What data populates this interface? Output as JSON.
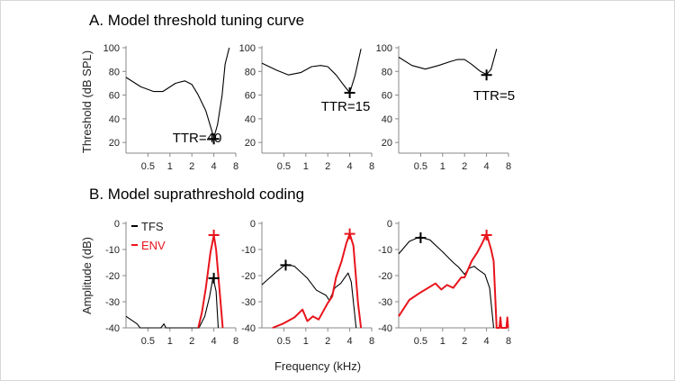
{
  "chart_data": [
    {
      "type": "line",
      "section_title": "A. Model threshold tuning curve",
      "panel": 1,
      "ylabel": "Threshold (dB SPL)",
      "xscale": "log2",
      "xticks": [
        "0.5",
        "1",
        "2",
        "4",
        "8"
      ],
      "yticks": [
        "20",
        "40",
        "60",
        "80",
        "100"
      ],
      "xlim": [
        0.25,
        8
      ],
      "ylim": [
        11,
        100
      ],
      "annotation": "TTR=40",
      "series": [
        {
          "color": "#000000",
          "points": [
            [
              0.25,
              75
            ],
            [
              0.4,
              67
            ],
            [
              0.6,
              63
            ],
            [
              0.8,
              63
            ],
            [
              1.2,
              70
            ],
            [
              1.6,
              72
            ],
            [
              2,
              69
            ],
            [
              2.4,
              61
            ],
            [
              3.1,
              47
            ],
            [
              3.7,
              31
            ],
            [
              4,
              24
            ],
            [
              4.5,
              35
            ],
            [
              5.2,
              60
            ],
            [
              5.7,
              86
            ],
            [
              6.5,
              100
            ]
          ]
        }
      ],
      "markers": [
        {
          "color": "#000000",
          "x": 4,
          "y": 23
        }
      ]
    },
    {
      "type": "line",
      "panel": 2,
      "xscale": "log2",
      "xticks": [
        "0.5",
        "1",
        "2",
        "4",
        "8"
      ],
      "yticks": [
        "20",
        "40",
        "60",
        "80",
        "100"
      ],
      "xlim": [
        0.25,
        8
      ],
      "ylim": [
        11,
        100
      ],
      "annotation": "TTR=15",
      "series": [
        {
          "color": "#000000",
          "points": [
            [
              0.25,
              87
            ],
            [
              0.4,
              81
            ],
            [
              0.58,
              77
            ],
            [
              0.85,
              79
            ],
            [
              1.2,
              84
            ],
            [
              1.6,
              85
            ],
            [
              2,
              84
            ],
            [
              2.6,
              77
            ],
            [
              3.3,
              68.5
            ],
            [
              4,
              62
            ],
            [
              4.7,
              76
            ],
            [
              5.7,
              99
            ]
          ]
        }
      ],
      "markers": [
        {
          "color": "#000000",
          "x": 4,
          "y": 62
        }
      ]
    },
    {
      "type": "line",
      "panel": 3,
      "xscale": "log2",
      "xticks": [
        "0.5",
        "1",
        "2",
        "4",
        "8"
      ],
      "yticks": [
        "20",
        "40",
        "60",
        "80",
        "100"
      ],
      "xlim": [
        0.25,
        8
      ],
      "ylim": [
        11,
        100
      ],
      "annotation": "TTR=5",
      "series": [
        {
          "color": "#000000",
          "points": [
            [
              0.25,
              92
            ],
            [
              0.38,
              85
            ],
            [
              0.58,
              82
            ],
            [
              0.88,
              85
            ],
            [
              1.3,
              88.5
            ],
            [
              1.6,
              90
            ],
            [
              2,
              90
            ],
            [
              2.5,
              86
            ],
            [
              3.3,
              80
            ],
            [
              4,
              77.5
            ],
            [
              4.6,
              81.5
            ],
            [
              5.5,
              99
            ]
          ]
        }
      ],
      "markers": [
        {
          "color": "#000000",
          "x": 4,
          "y": 77
        }
      ]
    },
    {
      "type": "line",
      "section_title": "B. Model suprathreshold coding",
      "panel": 4,
      "ylabel": "Amplitude (dB)",
      "xscale": "log2",
      "xticks": [
        "0.5",
        "1",
        "2",
        "4",
        "8"
      ],
      "yticks": [
        "0",
        "-10",
        "-20",
        "-30",
        "-40"
      ],
      "xlim": [
        0.25,
        8
      ],
      "ylim": [
        -40,
        0
      ],
      "legend": "top-left",
      "series": [
        {
          "name": "TFS",
          "color": "#000000",
          "points": [
            [
              0.25,
              -35.6
            ],
            [
              0.355,
              -38.5
            ],
            [
              0.39,
              -40
            ],
            [
              0.75,
              -40
            ],
            [
              0.83,
              -38.5
            ],
            [
              0.88,
              -40
            ],
            [
              2.5,
              -40
            ],
            [
              3.0,
              -35.6
            ],
            [
              3.5,
              -28
            ],
            [
              3.9,
              -20.7
            ],
            [
              4.3,
              -26
            ],
            [
              4.6,
              -40
            ]
          ]
        },
        {
          "name": "ENV",
          "color": "#e8141c",
          "points": [
            [
              2.45,
              -40
            ],
            [
              2.75,
              -34
            ],
            [
              3.1,
              -25
            ],
            [
              3.6,
              -11
            ],
            [
              4,
              -4.6
            ],
            [
              4.3,
              -10
            ],
            [
              5.3,
              -40
            ]
          ]
        }
      ],
      "markers": [
        {
          "color": "#000000",
          "x": 4,
          "y": -21
        },
        {
          "color": "#e8141c",
          "x": 4,
          "y": -4.5
        }
      ]
    },
    {
      "type": "line",
      "panel": 5,
      "xscale": "log2",
      "xlabel": "Frequency (kHz)",
      "xticks": [
        "0.5",
        "1",
        "2",
        "4",
        "8"
      ],
      "yticks": [
        "0",
        "-10",
        "-20",
        "-30",
        "-40"
      ],
      "xlim": [
        0.25,
        8
      ],
      "ylim": [
        -40,
        0
      ],
      "series": [
        {
          "name": "TFS",
          "color": "#000000",
          "points": [
            [
              0.25,
              -23.5
            ],
            [
              0.4,
              -18.4
            ],
            [
              0.53,
              -15.7
            ],
            [
              0.7,
              -16.4
            ],
            [
              1.05,
              -21
            ],
            [
              1.4,
              -25.6
            ],
            [
              1.9,
              -27.6
            ],
            [
              2.1,
              -29.5
            ],
            [
              2.5,
              -24.7
            ],
            [
              3.0,
              -23
            ],
            [
              3.8,
              -19
            ],
            [
              4.2,
              -22.4
            ],
            [
              4.9,
              -40
            ]
          ]
        },
        {
          "name": "ENV",
          "color": "#e8141c",
          "points": [
            [
              0.35,
              -40
            ],
            [
              0.48,
              -38.5
            ],
            [
              0.7,
              -36
            ],
            [
              0.9,
              -33
            ],
            [
              1.05,
              -37.4
            ],
            [
              1.25,
              -35.6
            ],
            [
              1.5,
              -36.8
            ],
            [
              2.0,
              -30.5
            ],
            [
              2.3,
              -28
            ],
            [
              2.6,
              -20.7
            ],
            [
              3.1,
              -14.4
            ],
            [
              3.6,
              -7.5
            ],
            [
              4,
              -4
            ],
            [
              4.5,
              -8.6
            ],
            [
              5.2,
              -30.5
            ],
            [
              5.7,
              -40
            ]
          ]
        }
      ],
      "markers": [
        {
          "color": "#000000",
          "x": 0.53,
          "y": -16
        },
        {
          "color": "#e8141c",
          "x": 4,
          "y": -4
        }
      ]
    },
    {
      "type": "line",
      "panel": 6,
      "xscale": "log2",
      "xticks": [
        "0.5",
        "1",
        "2",
        "4",
        "8"
      ],
      "yticks": [
        "0",
        "-10",
        "-20",
        "-30",
        "-40"
      ],
      "xlim": [
        0.25,
        8
      ],
      "ylim": [
        -40,
        0
      ],
      "series": [
        {
          "name": "TFS",
          "color": "#000000",
          "points": [
            [
              0.25,
              -11.7
            ],
            [
              0.35,
              -6.9
            ],
            [
              0.48,
              -5.2
            ],
            [
              0.67,
              -6.3
            ],
            [
              1.0,
              -10.9
            ],
            [
              1.4,
              -15
            ],
            [
              1.65,
              -16.7
            ],
            [
              2.0,
              -19.5
            ],
            [
              2.3,
              -17.2
            ],
            [
              2.7,
              -16.4
            ],
            [
              3.1,
              -17.8
            ],
            [
              3.8,
              -19.5
            ],
            [
              4.4,
              -24.7
            ],
            [
              5.0,
              -40
            ]
          ]
        },
        {
          "name": "ENV",
          "color": "#e8141c",
          "points": [
            [
              0.25,
              -35.6
            ],
            [
              0.35,
              -29.3
            ],
            [
              0.5,
              -26.4
            ],
            [
              0.8,
              -23
            ],
            [
              0.96,
              -25.3
            ],
            [
              1.15,
              -23.6
            ],
            [
              1.4,
              -24.7
            ],
            [
              1.8,
              -20.7
            ],
            [
              2.0,
              -20.7
            ],
            [
              2.5,
              -14.4
            ],
            [
              3.0,
              -11
            ],
            [
              3.5,
              -7.5
            ],
            [
              4.0,
              -4
            ],
            [
              4.6,
              -9.8
            ],
            [
              5.0,
              -14.4
            ],
            [
              5.5,
              -40
            ],
            [
              6.0,
              -40
            ],
            [
              6.2,
              -36
            ],
            [
              6.4,
              -40
            ],
            [
              7.5,
              -40
            ],
            [
              7.7,
              -36
            ],
            [
              7.9,
              -40
            ]
          ]
        }
      ],
      "markers": [
        {
          "color": "#000000",
          "x": 0.5,
          "y": -5.5
        },
        {
          "color": "#e8141c",
          "x": 4,
          "y": -4.5
        }
      ]
    }
  ]
}
